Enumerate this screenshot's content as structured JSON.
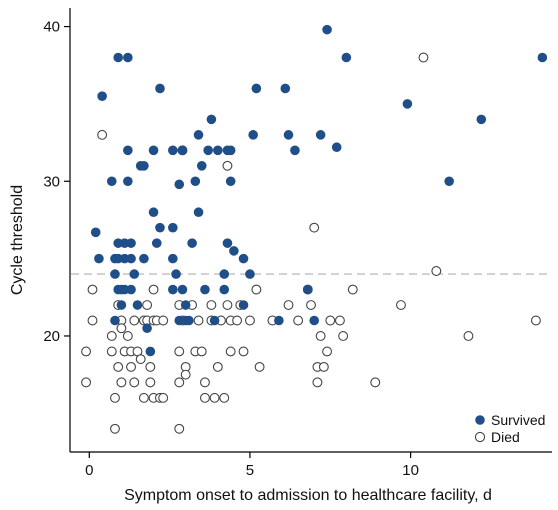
{
  "chart_data": {
    "type": "scatter",
    "title": "",
    "xlabel": "Symptom onset to admission to healthcare facility, d",
    "ylabel": "Cycle threshold",
    "xlim": [
      -0.6,
      14.4
    ],
    "ylim": [
      12.5,
      41.2
    ],
    "xticks": [
      0,
      5,
      10
    ],
    "yticks": [
      20,
      30,
      40
    ],
    "grid": false,
    "legend_position": "bottom-right",
    "reference_line": {
      "y": 24,
      "style": "dashed",
      "color": "#c8c8c8"
    },
    "colors": {
      "survived": "#1f4e89",
      "died": "#ffffff",
      "died_stroke": "#444444"
    },
    "series": [
      {
        "name": "Survived",
        "marker": "filled-circle",
        "points": [
          [
            0.2,
            26.7
          ],
          [
            0.3,
            25
          ],
          [
            0.4,
            35.5
          ],
          [
            0.7,
            30
          ],
          [
            0.8,
            25
          ],
          [
            0.8,
            24
          ],
          [
            0.8,
            21
          ],
          [
            0.9,
            38
          ],
          [
            0.9,
            26
          ],
          [
            0.9,
            25
          ],
          [
            0.9,
            23
          ],
          [
            1.0,
            23
          ],
          [
            1.0,
            22
          ],
          [
            1.1,
            26
          ],
          [
            1.1,
            25
          ],
          [
            1.1,
            23
          ],
          [
            1.2,
            38
          ],
          [
            1.2,
            32
          ],
          [
            1.2,
            30
          ],
          [
            1.3,
            26
          ],
          [
            1.3,
            25
          ],
          [
            1.3,
            23
          ],
          [
            1.4,
            24
          ],
          [
            1.5,
            22
          ],
          [
            1.6,
            31
          ],
          [
            1.7,
            25
          ],
          [
            1.7,
            31
          ],
          [
            1.8,
            20.5
          ],
          [
            1.9,
            19
          ],
          [
            2.0,
            32
          ],
          [
            2.0,
            28
          ],
          [
            2.1,
            26
          ],
          [
            2.2,
            36
          ],
          [
            2.2,
            27
          ],
          [
            2.6,
            32
          ],
          [
            2.6,
            27
          ],
          [
            2.6,
            25
          ],
          [
            2.6,
            23
          ],
          [
            2.7,
            24
          ],
          [
            2.8,
            21
          ],
          [
            2.8,
            29.8
          ],
          [
            2.9,
            32
          ],
          [
            2.9,
            23
          ],
          [
            3.0,
            22
          ],
          [
            3.0,
            21
          ],
          [
            3.1,
            21
          ],
          [
            3.2,
            26
          ],
          [
            3.3,
            30
          ],
          [
            3.4,
            28
          ],
          [
            3.4,
            33
          ],
          [
            3.5,
            31
          ],
          [
            3.6,
            23
          ],
          [
            3.7,
            32
          ],
          [
            3.8,
            34
          ],
          [
            3.9,
            21
          ],
          [
            4.0,
            32
          ],
          [
            4.2,
            24
          ],
          [
            4.2,
            23
          ],
          [
            4.3,
            32
          ],
          [
            4.3,
            26
          ],
          [
            4.4,
            32
          ],
          [
            4.4,
            30
          ],
          [
            4.5,
            25.5
          ],
          [
            4.8,
            22
          ],
          [
            4.8,
            25
          ],
          [
            5.0,
            24
          ],
          [
            5.1,
            33
          ],
          [
            5.2,
            36
          ],
          [
            5.9,
            21
          ],
          [
            6.1,
            36
          ],
          [
            6.2,
            33
          ],
          [
            6.4,
            32
          ],
          [
            6.8,
            23
          ],
          [
            7.0,
            21
          ],
          [
            7.2,
            33
          ],
          [
            7.4,
            39.8
          ],
          [
            7.7,
            32.2
          ],
          [
            8.0,
            38
          ],
          [
            9.9,
            35
          ],
          [
            11.2,
            30
          ],
          [
            12.2,
            34
          ],
          [
            14.1,
            38
          ]
        ]
      },
      {
        "name": "Died",
        "marker": "open-circle",
        "points": [
          [
            -0.1,
            19
          ],
          [
            -0.1,
            17
          ],
          [
            0.1,
            23
          ],
          [
            0.1,
            21
          ],
          [
            0.4,
            33
          ],
          [
            0.7,
            20
          ],
          [
            0.7,
            19
          ],
          [
            0.8,
            16
          ],
          [
            0.8,
            14
          ],
          [
            0.9,
            22
          ],
          [
            0.9,
            18
          ],
          [
            1.0,
            21
          ],
          [
            1.0,
            17
          ],
          [
            1.0,
            20.5
          ],
          [
            1.1,
            19
          ],
          [
            1.2,
            20
          ],
          [
            1.3,
            19
          ],
          [
            1.3,
            18
          ],
          [
            1.4,
            21
          ],
          [
            1.4,
            17
          ],
          [
            1.5,
            19
          ],
          [
            1.6,
            18.5
          ],
          [
            1.7,
            21
          ],
          [
            1.7,
            16
          ],
          [
            1.8,
            22
          ],
          [
            1.8,
            21
          ],
          [
            1.9,
            18
          ],
          [
            1.9,
            17
          ],
          [
            2.0,
            23
          ],
          [
            2.0,
            21
          ],
          [
            2.0,
            16
          ],
          [
            2.1,
            21
          ],
          [
            2.2,
            16
          ],
          [
            2.3,
            21
          ],
          [
            2.3,
            16
          ],
          [
            2.8,
            22
          ],
          [
            2.8,
            19
          ],
          [
            2.8,
            17
          ],
          [
            2.8,
            14
          ],
          [
            2.9,
            32
          ],
          [
            2.9,
            21
          ],
          [
            3.0,
            18
          ],
          [
            3.0,
            17.5
          ],
          [
            3.2,
            22
          ],
          [
            3.3,
            19
          ],
          [
            3.4,
            21
          ],
          [
            3.5,
            19
          ],
          [
            3.6,
            17
          ],
          [
            3.6,
            16
          ],
          [
            3.8,
            22
          ],
          [
            3.8,
            21
          ],
          [
            3.9,
            16
          ],
          [
            4.0,
            18
          ],
          [
            4.1,
            21
          ],
          [
            4.2,
            16
          ],
          [
            4.3,
            31
          ],
          [
            4.3,
            22
          ],
          [
            4.4,
            19
          ],
          [
            4.4,
            21
          ],
          [
            4.6,
            21
          ],
          [
            4.7,
            22
          ],
          [
            4.8,
            19
          ],
          [
            5.0,
            21
          ],
          [
            5.2,
            23
          ],
          [
            5.3,
            18
          ],
          [
            5.7,
            21
          ],
          [
            6.2,
            22
          ],
          [
            6.5,
            21
          ],
          [
            6.8,
            23
          ],
          [
            6.9,
            22
          ],
          [
            7.0,
            27
          ],
          [
            7.1,
            18
          ],
          [
            7.1,
            17
          ],
          [
            7.2,
            20
          ],
          [
            7.3,
            18
          ],
          [
            7.4,
            19
          ],
          [
            7.5,
            21
          ],
          [
            7.8,
            21
          ],
          [
            7.9,
            20
          ],
          [
            8.2,
            23
          ],
          [
            8.9,
            17
          ],
          [
            9.7,
            22
          ],
          [
            10.4,
            38
          ],
          [
            10.8,
            24.2
          ],
          [
            11.8,
            20
          ],
          [
            13.9,
            21
          ]
        ]
      }
    ]
  }
}
